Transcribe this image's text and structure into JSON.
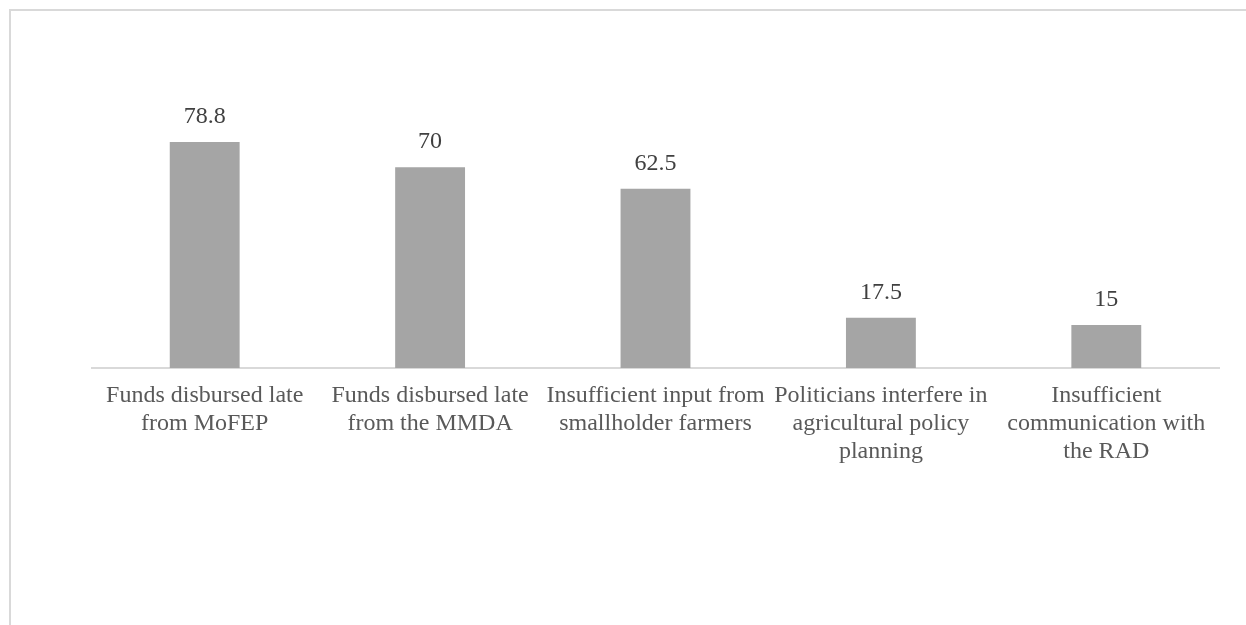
{
  "chart_data": {
    "type": "bar",
    "categories": [
      "Funds disbursed late from MoFEP",
      "Funds disbursed late from the MMDA",
      "Insufficient input from smallholder farmers",
      "Politicians interfere in agricultural policy planning",
      "Insufficient communication with the RAD"
    ],
    "values": [
      78.8,
      70,
      62.5,
      17.5,
      15
    ],
    "color": "#a5a5a5",
    "data_labels": true,
    "tick_labels": "x"
  }
}
